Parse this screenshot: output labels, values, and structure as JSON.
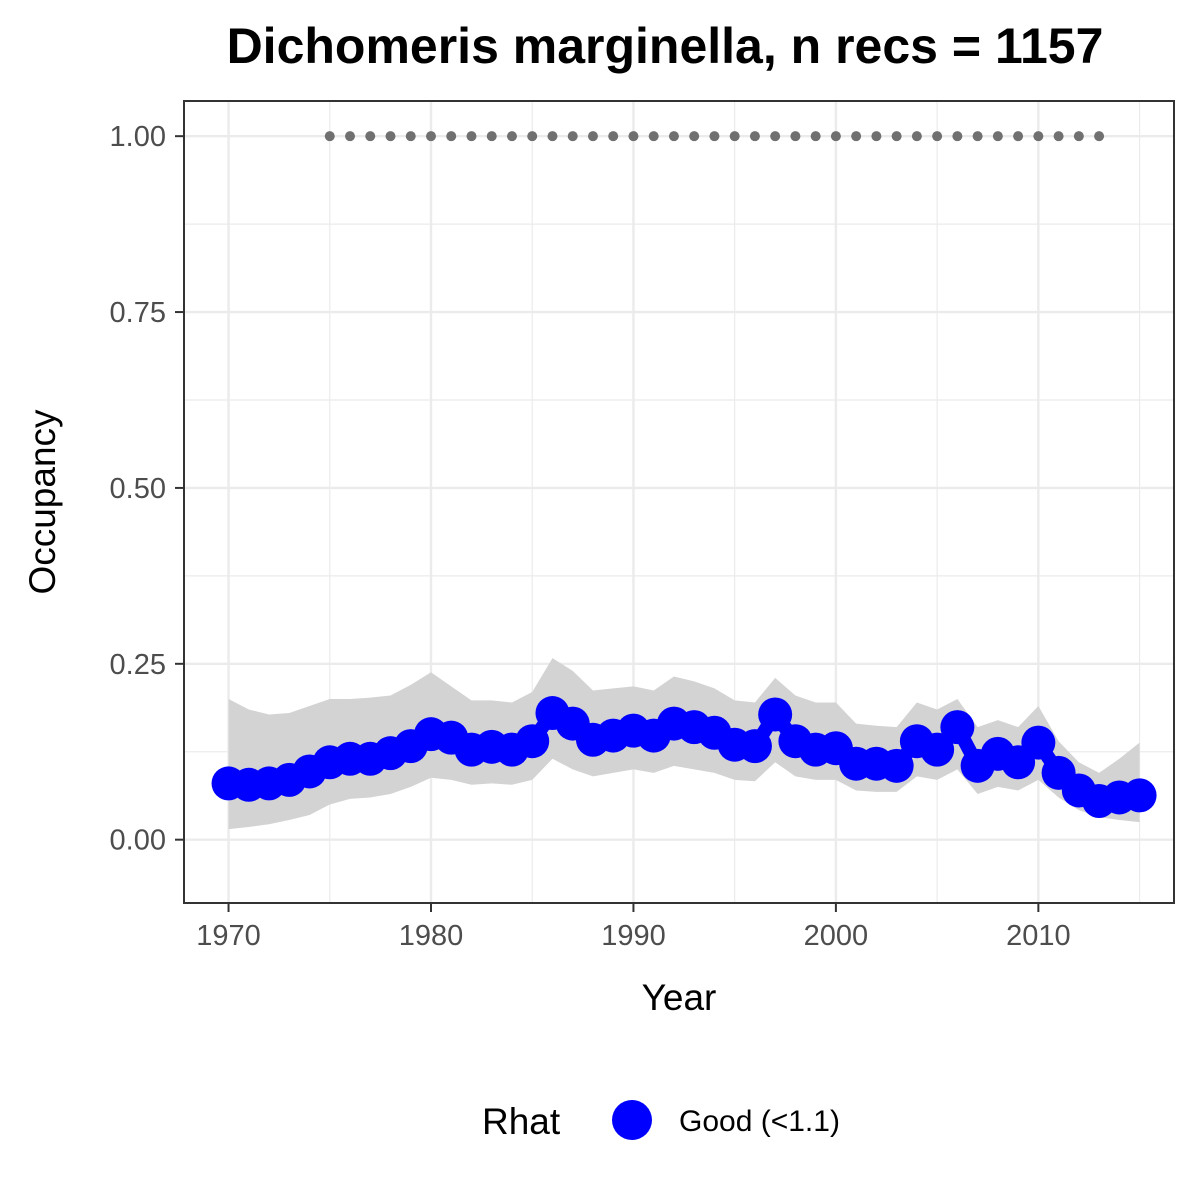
{
  "chart_data": {
    "type": "line",
    "title": "Dichomeris marginella, n recs = 1157",
    "xlabel": "Year",
    "ylabel": "Occupancy",
    "xlim": [
      1967.8,
      2016.7
    ],
    "ylim": [
      -0.09,
      1.05
    ],
    "x_ticks": [
      1970,
      1980,
      1990,
      2000,
      2010
    ],
    "x_tick_labels": [
      "1970",
      "1980",
      "1990",
      "2000",
      "2010"
    ],
    "y_ticks": [
      0.0,
      0.25,
      0.5,
      0.75,
      1.0
    ],
    "y_tick_labels": [
      "0.00",
      "0.25",
      "0.50",
      "0.75",
      "1.00"
    ],
    "grid": true,
    "legend_position": "bottom",
    "legend": {
      "title": "Rhat",
      "entries": [
        {
          "label": "Good (<1.1)",
          "color": "#0000ff"
        }
      ]
    },
    "colors": {
      "points": "#0000ff",
      "ribbon": "#d3d3d3",
      "record_markers": "#707070",
      "grid": "#ebebeb",
      "panel_border": "#333333"
    },
    "series": [
      {
        "kind": "points_and_line",
        "x": [
          1970,
          1971,
          1972,
          1973,
          1974,
          1975,
          1976,
          1977,
          1978,
          1979,
          1980,
          1981,
          1982,
          1983,
          1984,
          1985,
          1986,
          1987,
          1988,
          1989,
          1990,
          1991,
          1992,
          1993,
          1994,
          1995,
          1996,
          1997,
          1998,
          1999,
          2000,
          2001,
          2002,
          2003,
          2004,
          2005,
          2006,
          2007,
          2008,
          2009,
          2010,
          2011,
          2012,
          2013,
          2014,
          2015
        ],
        "values": [
          0.08,
          0.078,
          0.08,
          0.085,
          0.097,
          0.11,
          0.115,
          0.115,
          0.123,
          0.133,
          0.15,
          0.145,
          0.128,
          0.132,
          0.128,
          0.14,
          0.18,
          0.165,
          0.142,
          0.148,
          0.155,
          0.148,
          0.165,
          0.16,
          0.152,
          0.135,
          0.133,
          0.178,
          0.14,
          0.128,
          0.13,
          0.108,
          0.108,
          0.105,
          0.14,
          0.128,
          0.16,
          0.105,
          0.122,
          0.11,
          0.138,
          0.095,
          0.07,
          0.055,
          0.06,
          0.063
        ]
      },
      {
        "kind": "ribbon",
        "x": [
          1970,
          1971,
          1972,
          1973,
          1974,
          1975,
          1976,
          1977,
          1978,
          1979,
          1980,
          1981,
          1982,
          1983,
          1984,
          1985,
          1986,
          1987,
          1988,
          1989,
          1990,
          1991,
          1992,
          1993,
          1994,
          1995,
          1996,
          1997,
          1998,
          1999,
          2000,
          2001,
          2002,
          2003,
          2004,
          2005,
          2006,
          2007,
          2008,
          2009,
          2010,
          2011,
          2012,
          2013,
          2014,
          2015
        ],
        "lower": [
          0.015,
          0.018,
          0.022,
          0.028,
          0.035,
          0.05,
          0.058,
          0.06,
          0.065,
          0.075,
          0.088,
          0.085,
          0.078,
          0.08,
          0.078,
          0.085,
          0.115,
          0.1,
          0.09,
          0.095,
          0.1,
          0.095,
          0.105,
          0.1,
          0.095,
          0.085,
          0.083,
          0.11,
          0.09,
          0.085,
          0.085,
          0.07,
          0.068,
          0.068,
          0.09,
          0.085,
          0.1,
          0.065,
          0.075,
          0.07,
          0.085,
          0.06,
          0.042,
          0.032,
          0.028,
          0.025
        ],
        "upper": [
          0.2,
          0.185,
          0.178,
          0.18,
          0.19,
          0.2,
          0.2,
          0.202,
          0.205,
          0.22,
          0.238,
          0.218,
          0.198,
          0.198,
          0.195,
          0.21,
          0.258,
          0.24,
          0.212,
          0.215,
          0.218,
          0.212,
          0.232,
          0.225,
          0.215,
          0.198,
          0.195,
          0.23,
          0.205,
          0.195,
          0.195,
          0.165,
          0.162,
          0.16,
          0.195,
          0.185,
          0.2,
          0.16,
          0.17,
          0.16,
          0.19,
          0.14,
          0.11,
          0.095,
          0.115,
          0.138
        ]
      },
      {
        "kind": "record_markers",
        "x": [
          1975,
          1976,
          1977,
          1978,
          1979,
          1980,
          1981,
          1982,
          1983,
          1984,
          1985,
          1986,
          1987,
          1988,
          1989,
          1990,
          1991,
          1992,
          1993,
          1994,
          1995,
          1996,
          1997,
          1998,
          1999,
          2000,
          2001,
          2002,
          2003,
          2004,
          2005,
          2006,
          2007,
          2008,
          2009,
          2010,
          2011,
          2012,
          2013
        ],
        "values": [
          1,
          1,
          1,
          1,
          1,
          1,
          1,
          1,
          1,
          1,
          1,
          1,
          1,
          1,
          1,
          1,
          1,
          1,
          1,
          1,
          1,
          1,
          1,
          1,
          1,
          1,
          1,
          1,
          1,
          1,
          1,
          1,
          1,
          1,
          1,
          1,
          1,
          1,
          1
        ]
      }
    ]
  }
}
